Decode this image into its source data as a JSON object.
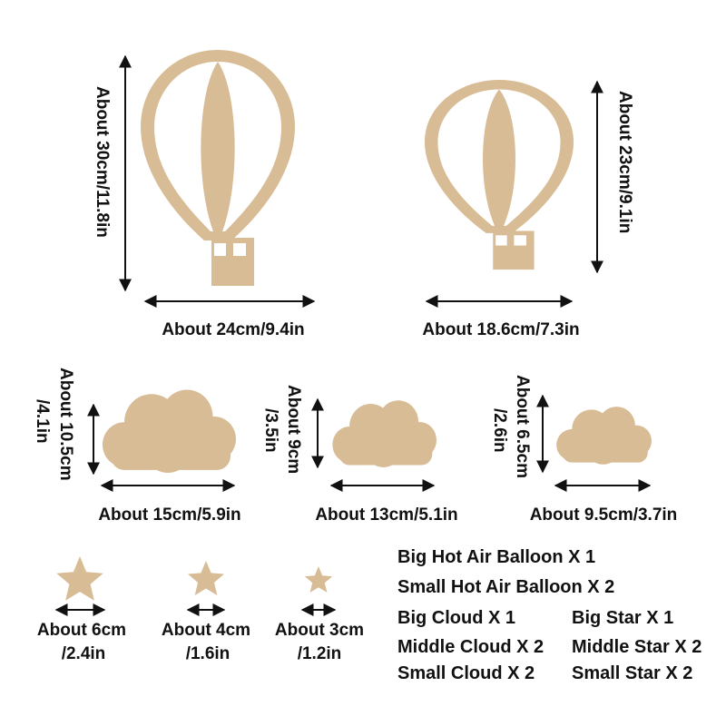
{
  "colors": {
    "wood": "#d8bc95",
    "wood_dark": "#c9a97e",
    "text": "#111111",
    "arrow": "#111111"
  },
  "balloons": {
    "big": {
      "height": "About 30cm/11.8in",
      "width": "About 24cm/9.4in"
    },
    "small": {
      "height": "About 23cm/9.1in",
      "width": "About 18.6cm/7.3in"
    }
  },
  "clouds": {
    "big": {
      "height_1": "About 10.5cm",
      "height_2": "/4.1in",
      "width": "About 15cm/5.9in"
    },
    "middle": {
      "height_1": "About 9cm",
      "height_2": "/3.5in",
      "width": "About 13cm/5.1in"
    },
    "small": {
      "height_1": "About 6.5cm",
      "height_2": "/2.6in",
      "width": "About 9.5cm/3.7in"
    }
  },
  "stars": {
    "big": {
      "line1": "About 6cm",
      "line2": "/2.4in"
    },
    "middle": {
      "line1": "About 4cm",
      "line2": "/1.6in"
    },
    "small": {
      "line1": "About 3cm",
      "line2": "/1.2in"
    }
  },
  "contents": [
    "Big Hot Air Balloon  X 1",
    "Small Hot Air Balloon  X 2",
    "Big Cloud  X 1",
    "Middle Cloud  X 2",
    "Small Cloud  X 2",
    "Big Star  X 1",
    "Middle Star  X 2",
    "Small Star  X 2"
  ]
}
